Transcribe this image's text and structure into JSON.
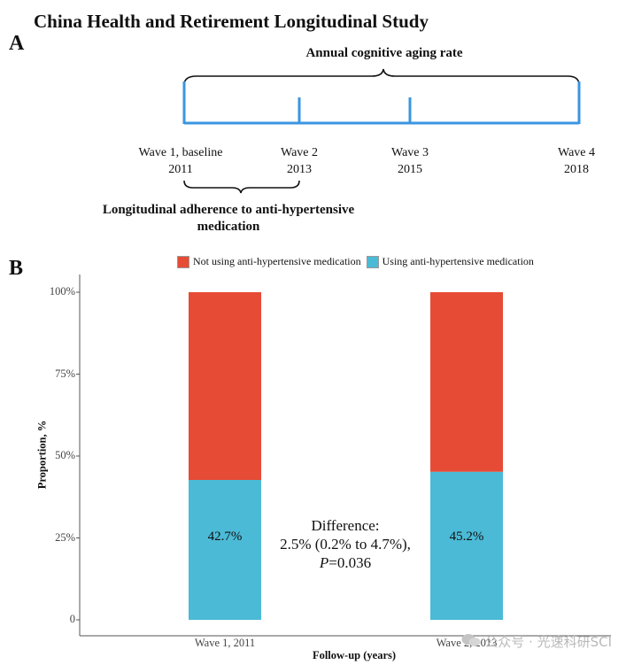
{
  "title": "China Health and Retirement Longitudinal Study",
  "panelA": {
    "label": "A",
    "bracket_top_label": "Annual cognitive aging rate",
    "bracket_bottom_label_line1": "Longitudinal adherence to anti-hypertensive",
    "bracket_bottom_label_line2": "medication",
    "waves": [
      {
        "name": "Wave 1, baseline",
        "year": "2011"
      },
      {
        "name": "Wave 2",
        "year": "2013"
      },
      {
        "name": "Wave 3",
        "year": "2015"
      },
      {
        "name": "Wave 4",
        "year": "2018"
      }
    ],
    "timeline_color": "#3a96e0"
  },
  "panelB": {
    "label": "B",
    "annotation": {
      "line1": "Difference:",
      "line2": "2.5% (0.2% to 4.7%),",
      "p_symbol": "P",
      "p_value": "=0.036"
    }
  },
  "chart_data": {
    "type": "bar",
    "stacked": true,
    "title": "",
    "xlabel": "Follow-up (years)",
    "ylabel": "Proportion, %",
    "categories": [
      "Wave 1, 2011",
      "Wave 2, 2013"
    ],
    "series": [
      {
        "name": "Using anti-hypertensive medication",
        "values": [
          42.7,
          45.2
        ],
        "color": "#4bbad6"
      },
      {
        "name": "Not using anti-hypertensive medication",
        "values": [
          57.3,
          54.8
        ],
        "color": "#e64b35"
      }
    ],
    "data_labels": [
      "42.7%",
      "45.2%"
    ],
    "ylim": [
      0,
      100
    ],
    "yticks": [
      0,
      25,
      50,
      75,
      100
    ],
    "ytick_labels": [
      "0",
      "25%",
      "50%",
      "75%",
      "100%"
    ],
    "legend_position": "top",
    "legend_order": [
      "Not using anti-hypertensive medication",
      "Using anti-hypertensive medication"
    ],
    "grid": false
  },
  "watermark": {
    "text": "公众号 · 光速科研SCI"
  }
}
